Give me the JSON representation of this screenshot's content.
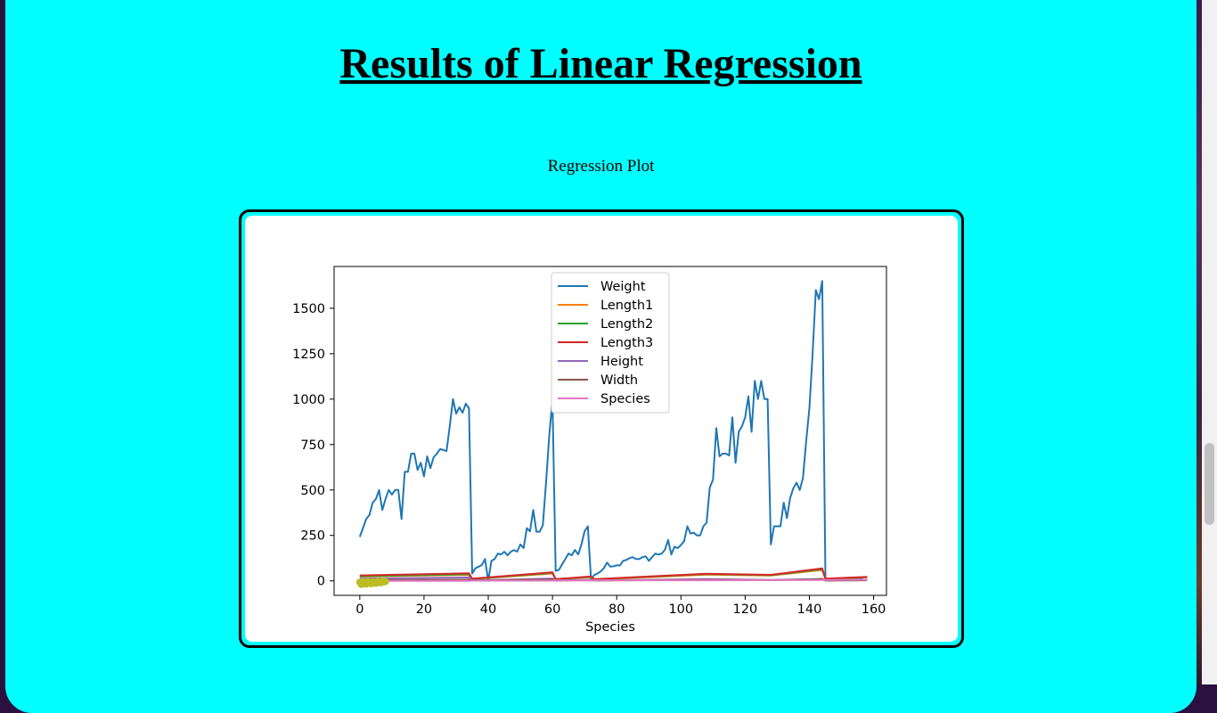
{
  "page": {
    "title": "Results of Linear Regression",
    "caption": "Regression Plot"
  },
  "chart_data": {
    "type": "line",
    "title": "",
    "xlabel": "Species",
    "ylabel": "",
    "xlim": [
      -8,
      164
    ],
    "ylim": [
      -80,
      1730
    ],
    "xticks": [
      0,
      20,
      40,
      60,
      80,
      100,
      120,
      140,
      160
    ],
    "yticks": [
      0,
      250,
      500,
      750,
      1000,
      1250,
      1500
    ],
    "grid": false,
    "legend_position": "top-center",
    "series": [
      {
        "name": "Weight",
        "color": "#1f77b4",
        "x": [
          0,
          1,
          2,
          3,
          4,
          5,
          6,
          7,
          8,
          9,
          10,
          11,
          12,
          13,
          14,
          15,
          16,
          17,
          18,
          19,
          20,
          21,
          22,
          23,
          24,
          25,
          26,
          27,
          28,
          29,
          30,
          31,
          32,
          33,
          34,
          35,
          36,
          37,
          38,
          39,
          40,
          41,
          42,
          43,
          44,
          45,
          46,
          47,
          48,
          49,
          50,
          51,
          52,
          53,
          54,
          55,
          56,
          57,
          58,
          59,
          60,
          61,
          62,
          63,
          64,
          65,
          66,
          67,
          68,
          69,
          70,
          71,
          72,
          73,
          74,
          75,
          76,
          77,
          78,
          79,
          80,
          81,
          82,
          83,
          84,
          85,
          86,
          87,
          88,
          89,
          90,
          91,
          92,
          93,
          94,
          95,
          96,
          97,
          98,
          99,
          100,
          101,
          102,
          103,
          104,
          105,
          106,
          107,
          108,
          109,
          110,
          111,
          112,
          113,
          114,
          115,
          116,
          117,
          118,
          119,
          120,
          121,
          122,
          123,
          124,
          125,
          126,
          127,
          128,
          129,
          130,
          131,
          132,
          133,
          134,
          135,
          136,
          137,
          138,
          139,
          140,
          141,
          142,
          143,
          144,
          145,
          146,
          147,
          148,
          149,
          150,
          151,
          152,
          153,
          154,
          155,
          156,
          157,
          158
        ],
        "y": [
          242,
          290,
          340,
          363,
          430,
          450,
          500,
          390,
          450,
          500,
          475,
          500,
          500,
          340,
          600,
          600,
          700,
          700,
          610,
          650,
          575,
          685,
          620,
          680,
          700,
          725,
          720,
          714,
          850,
          1000,
          920,
          955,
          925,
          975,
          950,
          40,
          69,
          78,
          87,
          120,
          0,
          110,
          120,
          150,
          145,
          160,
          140,
          160,
          169,
          161,
          200,
          180,
          290,
          272,
          390,
          270,
          270,
          306,
          540,
          800,
          1000,
          55,
          60,
          90,
          120,
          150,
          140,
          170,
          145,
          200,
          273,
          300,
          5.9,
          32,
          40,
          51.5,
          70,
          100,
          78,
          80,
          85,
          85,
          110,
          115,
          125,
          130,
          120,
          120,
          130,
          135,
          110,
          130,
          150,
          145,
          150,
          170,
          225,
          145,
          188,
          180,
          197,
          218,
          300,
          260,
          265,
          250,
          250,
          300,
          320,
          514,
          556,
          840,
          685,
          700,
          700,
          690,
          900,
          650,
          820,
          850,
          900,
          1015,
          820,
          1100,
          1000,
          1100,
          1000,
          1000,
          200,
          300,
          300,
          300,
          430,
          345,
          456,
          510,
          540,
          500,
          567,
          770,
          950,
          1250,
          1600,
          1550,
          1650,
          6.7,
          7.5,
          7,
          9.7,
          9.8,
          8.7,
          10,
          9.9,
          9.8,
          12.2,
          13.4,
          12.2,
          19.7,
          19.9
        ]
      },
      {
        "name": "Length1",
        "color": "#ff7f0e",
        "x": [
          0,
          34,
          35,
          60,
          61,
          72,
          73,
          108,
          128,
          142,
          144,
          145,
          158
        ],
        "y": [
          23,
          33,
          9.5,
          40,
          8,
          20,
          7.5,
          34,
          29,
          56,
          59,
          9.8,
          19
        ]
      },
      {
        "name": "Length2",
        "color": "#2ca02c",
        "x": [
          0,
          34,
          35,
          60,
          61,
          72,
          73,
          108,
          128,
          142,
          144,
          145,
          158
        ],
        "y": [
          25,
          36,
          10.5,
          44,
          8.8,
          22,
          8.4,
          37,
          31,
          60,
          63,
          10.8,
          20.7
        ]
      },
      {
        "name": "Length3",
        "color": "#d62728",
        "x": [
          0,
          34,
          35,
          60,
          61,
          72,
          73,
          108,
          128,
          142,
          144,
          145,
          158
        ],
        "y": [
          30,
          41,
          11.5,
          47,
          9.5,
          24,
          9,
          39,
          33,
          64,
          68,
          11.5,
          21.9
        ]
      },
      {
        "name": "Height",
        "color": "#9467bd",
        "x": [
          0,
          34,
          35,
          60,
          61,
          72,
          73,
          108,
          128,
          142,
          144,
          145,
          158
        ],
        "y": [
          11.5,
          18.5,
          2.5,
          12.5,
          2.2,
          6,
          2,
          10,
          5,
          10,
          11,
          1.7,
          3.5
        ]
      },
      {
        "name": "Width",
        "color": "#8c564b",
        "x": [
          0,
          34,
          35,
          60,
          61,
          72,
          73,
          108,
          128,
          142,
          144,
          145,
          158
        ],
        "y": [
          4,
          6.5,
          1.5,
          7,
          1.5,
          3.5,
          1.2,
          6,
          4,
          8.5,
          9,
          1.2,
          2.9
        ]
      },
      {
        "name": "Species",
        "color": "#e377c2",
        "x": [
          0,
          34,
          35,
          60,
          61,
          72,
          73,
          108,
          128,
          142,
          144,
          145,
          158
        ],
        "y": [
          0,
          0,
          1,
          1,
          2,
          2,
          3,
          3,
          4,
          4,
          5,
          5,
          6
        ]
      }
    ],
    "regression_markers": {
      "color": "#bcbd22",
      "x": [
        0,
        0.5,
        1,
        1.5,
        2,
        2.5,
        3,
        3.5,
        4,
        4.5,
        5,
        5.5,
        6,
        6.5,
        7,
        7.5,
        8
      ],
      "y": [
        -8,
        -20,
        -5,
        -15,
        -18,
        -4,
        -12,
        -16,
        -6,
        -10,
        -14,
        -3,
        -8,
        -11,
        -2,
        -6,
        -4
      ]
    }
  }
}
